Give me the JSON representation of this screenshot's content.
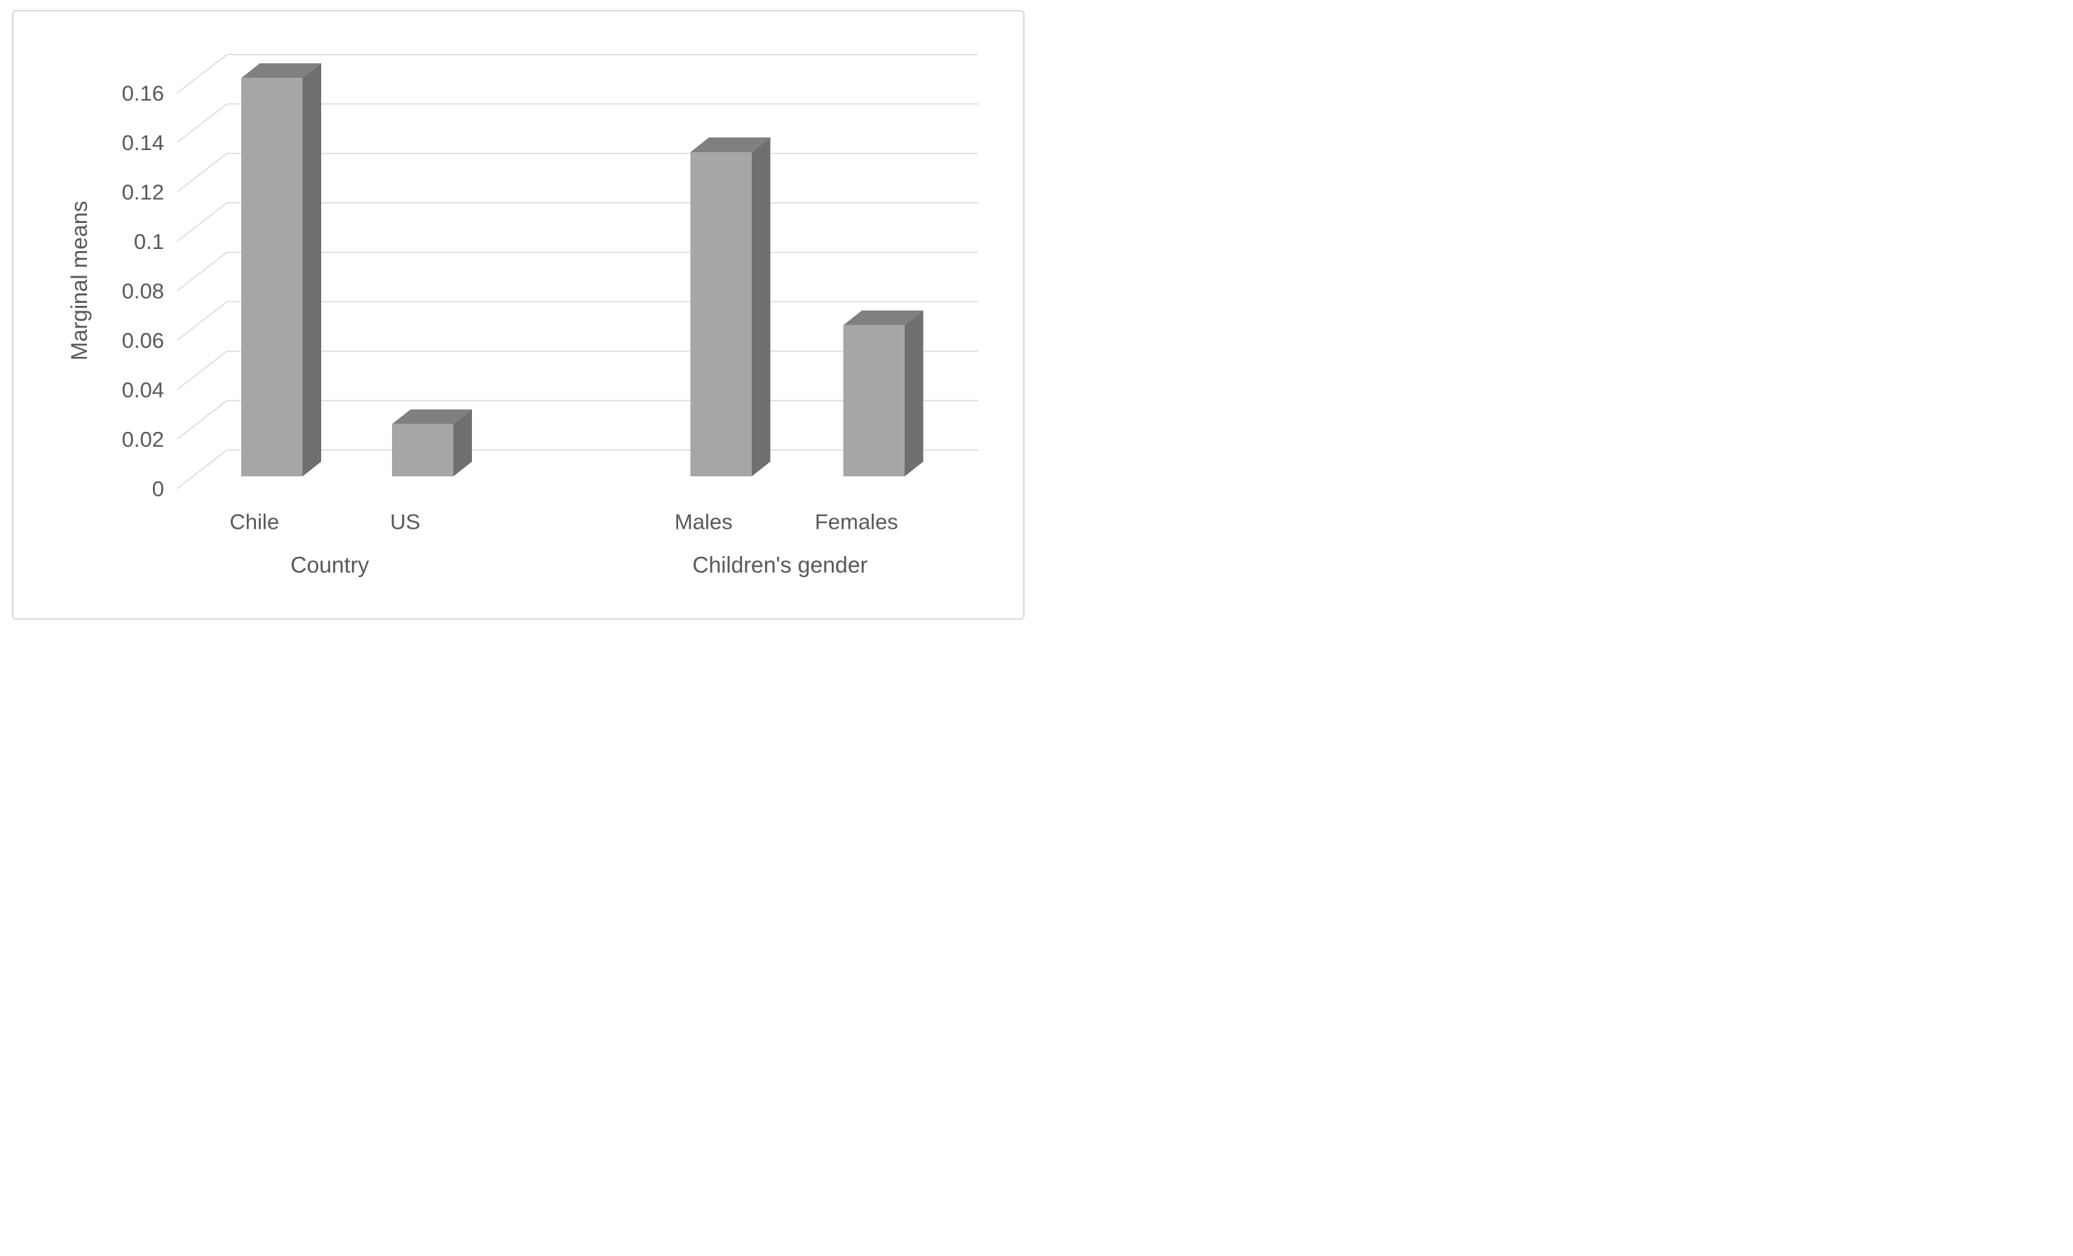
{
  "chart_data": {
    "type": "bar",
    "style": "3d-column",
    "title": "",
    "ylabel": "Marginal means",
    "xlabel": "",
    "ylim": [
      0,
      0.16
    ],
    "ystep": 0.02,
    "yticks": [
      "0",
      "0.02",
      "0.04",
      "0.06",
      "0.08",
      "0.1",
      "0.12",
      "0.14",
      "0.16"
    ],
    "grid": "on",
    "legend": "none",
    "groups": [
      {
        "label": "Country",
        "categories": [
          "Chile",
          "US"
        ],
        "values": [
          0.16,
          0.02
        ]
      },
      {
        "label": "Children's gender",
        "categories": [
          "Males",
          "Females"
        ],
        "values": [
          0.13,
          0.06
        ]
      }
    ],
    "colors": {
      "bar_front": "#a6a6a6",
      "bar_top": "#808080",
      "bar_side": "#6f6f6f",
      "gridline": "#d9d9d9",
      "text": "#595959",
      "frame_border": "#d9d9d9",
      "background": "#ffffff"
    }
  }
}
